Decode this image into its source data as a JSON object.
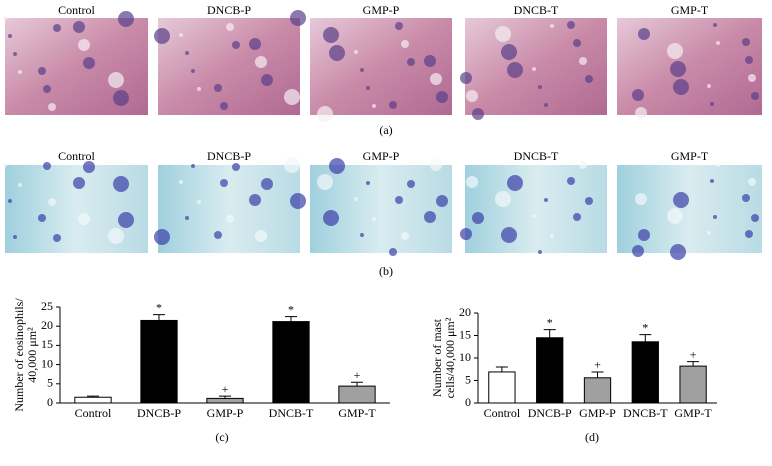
{
  "panels": [
    {
      "titles": [
        "Control",
        "DNCB-P",
        "GMP-P",
        "DNCB-T",
        "GMP-T"
      ],
      "label": "(a)"
    },
    {
      "titles": [
        "Control",
        "DNCB-P",
        "GMP-P",
        "DNCB-T",
        "GMP-T"
      ],
      "label": "(b)"
    }
  ],
  "chart_data": [
    {
      "type": "bar",
      "panel_label": "(c)",
      "ylabel": [
        "Number of eosinophils/",
        "40,000 μm²"
      ],
      "categories": [
        "Control",
        "DNCB-P",
        "GMP-P",
        "DNCB-T",
        "GMP-T"
      ],
      "values": [
        1.5,
        21.5,
        1.2,
        21.2,
        4.4
      ],
      "errors": [
        0.3,
        1.5,
        0.6,
        1.3,
        1.0
      ],
      "significance": [
        null,
        "*",
        "+",
        "*",
        "+"
      ],
      "colors": [
        "#ffffff",
        "#000000",
        "#a0a0a0",
        "#000000",
        "#a0a0a0"
      ],
      "ylim": [
        0,
        25
      ],
      "yticks": [
        0,
        5,
        10,
        15,
        20,
        25
      ]
    },
    {
      "type": "bar",
      "panel_label": "(d)",
      "ylabel": [
        "Number of mast",
        "cells/40,000 μm²"
      ],
      "categories": [
        "Control",
        "DNCB-P",
        "GMP-P",
        "DNCB-T",
        "GMP-T"
      ],
      "values": [
        6.9,
        14.5,
        5.6,
        13.6,
        8.2
      ],
      "errors": [
        1.1,
        1.8,
        1.3,
        1.6,
        1.0
      ],
      "significance": [
        null,
        "*",
        "+",
        "*",
        "+"
      ],
      "colors": [
        "#ffffff",
        "#000000",
        "#a0a0a0",
        "#000000",
        "#a0a0a0"
      ],
      "ylim": [
        0,
        20
      ],
      "yticks": [
        0,
        5,
        10,
        15,
        20
      ]
    }
  ]
}
